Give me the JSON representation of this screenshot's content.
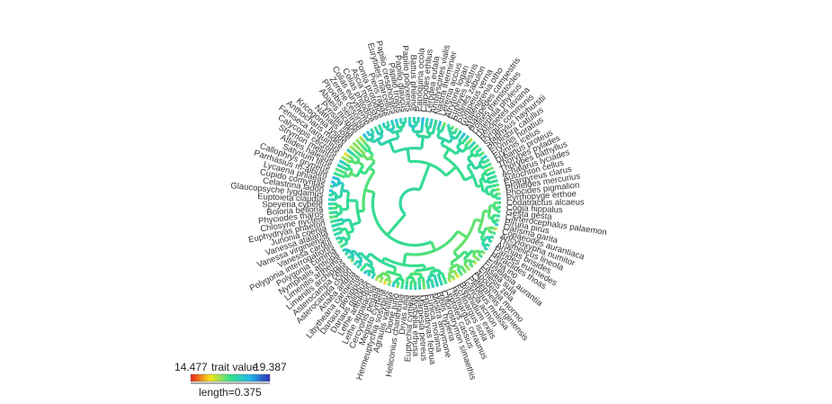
{
  "tips": [
    "Pyrrhopyge erthoe",
    "Phocides pigmalion",
    "Proteides mercurius",
    "Epargyreus clarus",
    "Autochton cellus",
    "Achalarus lyciades",
    "Thorybes bathyllus",
    "Thorybes pylades",
    "Urbanus proteus",
    "Erynnis icelus",
    "Erynnis horatius",
    "Pholisora catullus",
    "Staphylus hayhurstii",
    "Pyrgus communis",
    "Heliopetes laviana",
    "Hylephila phyleus",
    "Polites themistocles",
    "Atalopedes campestris",
    "Wallengrenia otho",
    "Pompeius verna",
    "Poanes zabulon",
    "Euphyes vestris",
    "Atrytone logan",
    "Lerema accius",
    "Nastra lherminier",
    "Amblyscirtes vialis",
    "Lerodea eufala",
    "Calpodes ethlius",
    "Panoquina ocola",
    "Battus philenor",
    "Papilio polyxenes",
    "Papilio glaucus",
    "Papilio troilus",
    "Papilio cresphontes",
    "Eurytides marcellus",
    "Pieris rapae",
    "Pontia protodice",
    "Ascia monuste",
    "Colias philodice",
    "Colias eurytheme",
    "Zerene cesonia",
    "Phoebis sennae",
    "Abaeis nicippe",
    "Pyrisitia lisa",
    "Nathalis iole",
    "Kricogonia lyside",
    "Anthocharis midea",
    "Feniseca tarquinius",
    "Calycopis cecrops",
    "Strymon melinus",
    "Atlides halesus",
    "Satyrium titus",
    "Callophrys gryneus",
    "Parrhasius m-album",
    "Lycaena phlaeas",
    "Cupido comyntas",
    "Celastrina ladon",
    "Glaucopsyche lygdamus",
    "Euptoieta claudia",
    "Speyeria cybele",
    "Boloria bellona",
    "Phyciodes tharos",
    "Chlosyne nycteis",
    "Euphydryas phaeton",
    "Junonia coenia",
    "Vanessa atalanta",
    "Vanessa virginiensis",
    "Vanessa cardui",
    "Polygonia interrogationis",
    "Polygonia comma",
    "Nymphalis antiopa",
    "Limenitis arthemis",
    "Limenitis archippus",
    "Asterocampa celtis",
    "Asterocampa clyton",
    "Anaea andria",
    "Libytheana carinenta",
    "Danaus plexippus",
    "Danaus gilippus",
    "Lethe anthedon",
    "Lethe appalachia",
    "Cercyonis pegala",
    "Megisto cymela",
    "Hermeuptychia sosybius",
    "Agraulis vanillae",
    "Dione juno",
    "Heliconius charithonia",
    "Dryas iulia",
    "Euptychia cymela",
    "Myscelia ethusa",
    "Marpesia petreus",
    "Hamadryas februa",
    "Eunica monima",
    "Mestra amymone",
    "Biblis hyperia",
    "Chlorostrymon simaethis",
    "Leptotes cassius",
    "Hemiargus ceraunus",
    "Echinargus isola",
    "Brephidium exilis",
    "Icaricia acmon",
    "Plebejus melissa",
    "Calephelis virginiensis",
    "Apodemia mormo",
    "Emesis zela",
    "Lasaia sula",
    "Euselasia aurantia",
    "Caria ino",
    "Heraclides thoas",
    "Parides eurimedes",
    "Archias brisides",
    "Thymelicus lineola",
    "Ancyloxypha numitor",
    "Copaeodes aurantiaca",
    "Oarisma garita",
    "Piruna pirus",
    "Carterocephalus palaemon",
    "Gesta gesta",
    "Cogia hippalus",
    "Codatractus alcaeus"
  ],
  "legend": {
    "min_label": "14.477",
    "title": "trait value",
    "max_label": "19.387",
    "scale_label": "length=0.375"
  },
  "colors": {
    "low": "#e8231c",
    "mid_low": "#f5e31a",
    "mid": "#35e08a",
    "mid_high": "#23b7e8",
    "high": "#2b2fb8"
  }
}
